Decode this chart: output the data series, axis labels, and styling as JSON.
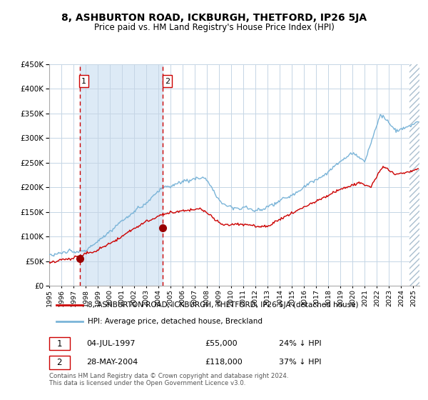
{
  "title": "8, ASHBURTON ROAD, ICKBURGH, THETFORD, IP26 5JA",
  "subtitle": "Price paid vs. HM Land Registry's House Price Index (HPI)",
  "legend_line1": "8, ASHBURTON ROAD, ICKBURGH, THETFORD, IP26 5JA (detached house)",
  "legend_line2": "HPI: Average price, detached house, Breckland",
  "table_row1_date": "04-JUL-1997",
  "table_row1_price": "£55,000",
  "table_row1_hpi": "24% ↓ HPI",
  "table_row2_date": "28-MAY-2004",
  "table_row2_price": "£118,000",
  "table_row2_hpi": "37% ↓ HPI",
  "footer": "Contains HM Land Registry data © Crown copyright and database right 2024.\nThis data is licensed under the Open Government Licence v3.0.",
  "hpi_color": "#7ab4d8",
  "price_color": "#cc0000",
  "dot_color": "#990000",
  "vline_color": "#cc0000",
  "bg_highlight_color": "#ddeaf6",
  "hatch_color": "#aabfcf",
  "grid_color": "#c5d5e5",
  "sale1_year": 1997.5,
  "sale1_price": 55000,
  "sale2_year": 2004.37,
  "sale2_price": 118000,
  "ylim_max": 450000,
  "ylim_min": 0,
  "xmin": 1995,
  "xmax": 2025.5
}
